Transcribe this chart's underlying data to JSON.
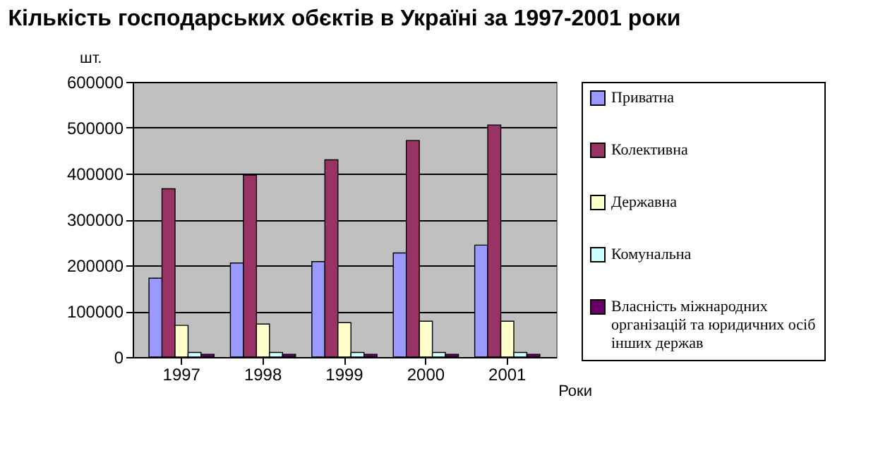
{
  "chart_data": {
    "type": "bar",
    "title": "Кількість господарських обєктів в Україні за 1997-2001 роки",
    "xlabel": "Роки",
    "ylabel": "шт.",
    "categories": [
      "1997",
      "1998",
      "1999",
      "2000",
      "2001"
    ],
    "series": [
      {
        "name": "Приватна",
        "color": "#9999ff",
        "values": [
          172000,
          205000,
          208000,
          227000,
          244000
        ]
      },
      {
        "name": "Колективна",
        "color": "#993366",
        "values": [
          367000,
          397000,
          430000,
          472000,
          506000
        ]
      },
      {
        "name": "Державна",
        "color": "#ffffcc",
        "values": [
          69000,
          72000,
          75000,
          78000,
          78000
        ]
      },
      {
        "name": "Комунальна",
        "color": "#ccffff",
        "values": [
          10000,
          10000,
          10000,
          10000,
          10000
        ]
      },
      {
        "name": "Власність міжнародних організацій та юридичних осіб інших держав",
        "color": "#660066",
        "values": [
          6000,
          6000,
          6000,
          6000,
          6000
        ]
      }
    ],
    "ylim": [
      0,
      600000
    ],
    "yticks": [
      0,
      100000,
      200000,
      300000,
      400000,
      500000,
      600000
    ],
    "grid": "y",
    "legend": "right"
  }
}
